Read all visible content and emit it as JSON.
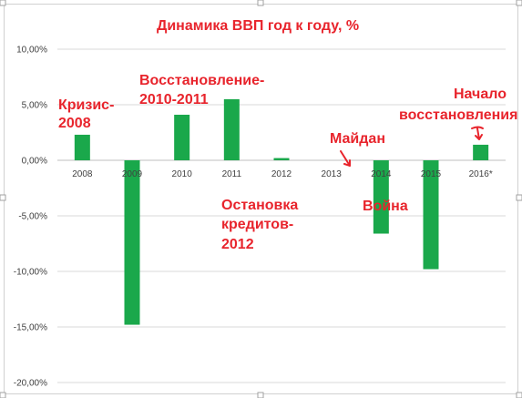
{
  "chart_data": {
    "type": "bar",
    "title": "Динамика ВВП год к году, %",
    "categories": [
      "2008",
      "2009",
      "2010",
      "2011",
      "2012",
      "2013",
      "2014",
      "2015",
      "2016*"
    ],
    "values": [
      2.3,
      -14.8,
      4.1,
      5.5,
      0.2,
      0.0,
      -6.6,
      -9.8,
      1.4
    ],
    "ylim": [
      -20,
      10
    ],
    "yticks": [
      {
        "value": 10,
        "label": "10,00%"
      },
      {
        "value": 5,
        "label": "5,00%"
      },
      {
        "value": 0,
        "label": "0,00%"
      },
      {
        "value": -5,
        "label": "-5,00%"
      },
      {
        "value": -10,
        "label": "-10,00%"
      },
      {
        "value": -15,
        "label": "-15,00%"
      },
      {
        "value": -20,
        "label": "-20,00%"
      }
    ],
    "grid": true,
    "bar_color": "#1aa84b",
    "annotation_color": "#e8242c",
    "annotations": [
      {
        "text": "Кризис-",
        "text2": "2008",
        "anchor": "2008"
      },
      {
        "text": "Восстановление-",
        "text2": "2010-2011",
        "anchor": "2010"
      },
      {
        "text": "Остановка",
        "text2": "кредитов-",
        "text3": "2012",
        "anchor": "2012"
      },
      {
        "text": "Майдан",
        "anchor": "2014"
      },
      {
        "text": "Война",
        "anchor": "2014"
      },
      {
        "text": "Начало",
        "text2": "восстановления",
        "anchor": "2016*"
      }
    ]
  }
}
